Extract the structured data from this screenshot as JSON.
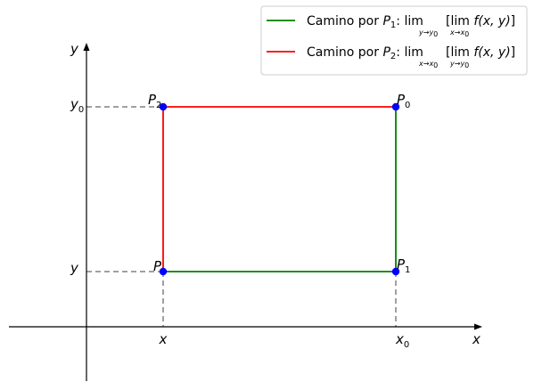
{
  "diagram": {
    "axes": {
      "x_label": "x",
      "y_label": "y"
    },
    "ticks": {
      "x": {
        "base": "x"
      },
      "x0": {
        "base": "x",
        "sub": "0"
      },
      "y": {
        "base": "y"
      },
      "y0": {
        "base": "y",
        "sub": "0"
      }
    },
    "points": {
      "P": {
        "base": "P",
        "sub": ""
      },
      "P0": {
        "base": "P",
        "sub": "0"
      },
      "P1": {
        "base": "P",
        "sub": "1"
      },
      "P2": {
        "base": "P",
        "sub": "2"
      }
    },
    "legend": {
      "location": "top-right",
      "entries": [
        {
          "color": "#008000",
          "prefix": "Camino por ",
          "point_base": "P",
          "point_sub": "1",
          "outer_lim": "lim",
          "outer_sub": "y→y",
          "outer_sub_index": "0",
          "inner_lim": "lim",
          "inner_sub": "x→x",
          "inner_sub_index": "0",
          "function": "f(x, y)"
        },
        {
          "color": "#ff0000",
          "prefix": "Camino por ",
          "point_base": "P",
          "point_sub": "2",
          "outer_lim": "lim",
          "outer_sub": "x→x",
          "outer_sub_index": "0",
          "inner_lim": "lim",
          "inner_sub": "y→y",
          "inner_sub_index": "0",
          "function": "f(x, y)"
        }
      ]
    },
    "colors": {
      "path_p1": "#008000",
      "path_p2": "#ff0000",
      "points": "#0000ff",
      "guides": "#808080",
      "axes": "#000000"
    }
  }
}
